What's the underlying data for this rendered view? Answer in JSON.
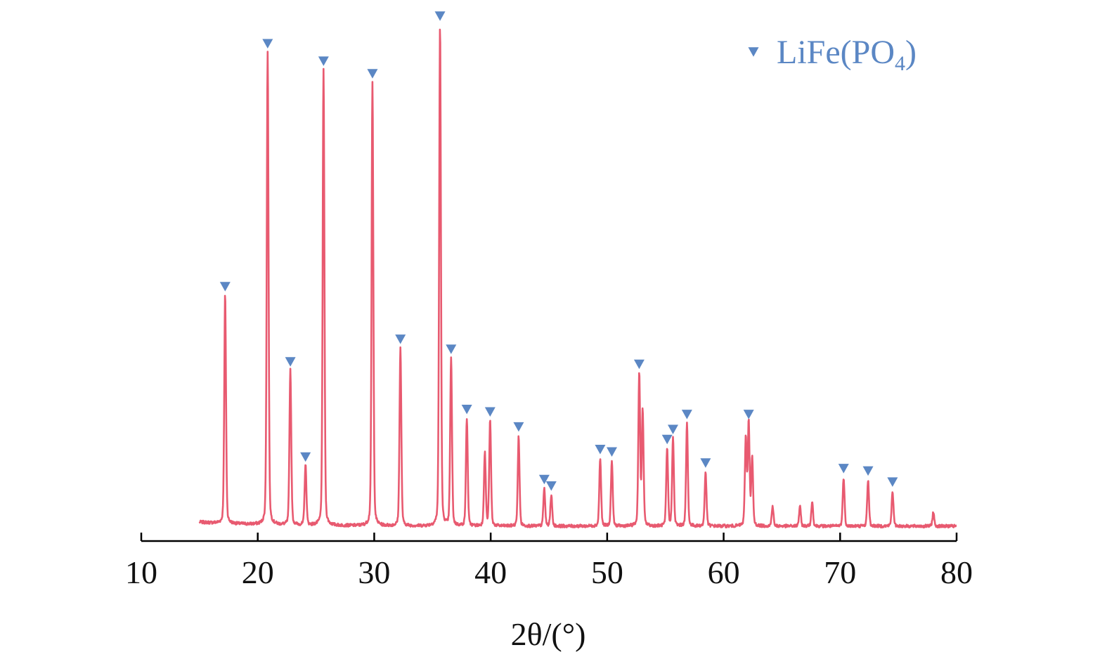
{
  "chart_data": {
    "type": "line",
    "title": "",
    "xlabel": "2θ/(°)",
    "ylabel": "",
    "xlim": [
      10,
      80
    ],
    "x_ticks": [
      10,
      20,
      30,
      40,
      50,
      60,
      70,
      80
    ],
    "grid": false,
    "y_axis_visible": false,
    "legend": {
      "position": "top-right",
      "entries": [
        {
          "marker": "down-triangle",
          "label": "LiFe(PO",
          "subscript": "4",
          "suffix": ")"
        }
      ]
    },
    "x_start": 15,
    "x_end": 80,
    "baseline": 10,
    "peaks": [
      {
        "x": 17.2,
        "y": 460
      },
      {
        "x": 20.85,
        "y": 945
      },
      {
        "x": 22.8,
        "y": 310
      },
      {
        "x": 24.1,
        "y": 120
      },
      {
        "x": 25.65,
        "y": 910
      },
      {
        "x": 29.85,
        "y": 885
      },
      {
        "x": 32.25,
        "y": 355
      },
      {
        "x": 35.65,
        "y": 1000
      },
      {
        "x": 36.6,
        "y": 335
      },
      {
        "x": 37.95,
        "y": 215
      },
      {
        "x": 39.5,
        "y": 145
      },
      {
        "x": 39.95,
        "y": 210
      },
      {
        "x": 42.4,
        "y": 180
      },
      {
        "x": 44.6,
        "y": 75
      },
      {
        "x": 45.2,
        "y": 62
      },
      {
        "x": 49.4,
        "y": 135
      },
      {
        "x": 50.4,
        "y": 130
      },
      {
        "x": 52.75,
        "y": 305
      },
      {
        "x": 53.05,
        "y": 230
      },
      {
        "x": 55.15,
        "y": 155
      },
      {
        "x": 55.65,
        "y": 175
      },
      {
        "x": 56.85,
        "y": 205
      },
      {
        "x": 58.45,
        "y": 108
      },
      {
        "x": 61.9,
        "y": 175
      },
      {
        "x": 62.15,
        "y": 205
      },
      {
        "x": 62.45,
        "y": 135
      },
      {
        "x": 64.2,
        "y": 40
      },
      {
        "x": 66.55,
        "y": 40
      },
      {
        "x": 67.6,
        "y": 50
      },
      {
        "x": 70.3,
        "y": 97
      },
      {
        "x": 72.4,
        "y": 92
      },
      {
        "x": 74.5,
        "y": 70
      },
      {
        "x": 78.0,
        "y": 28
      }
    ],
    "marked_peaks": [
      17.2,
      20.85,
      22.8,
      24.1,
      25.65,
      29.85,
      32.25,
      35.65,
      36.6,
      37.95,
      39.95,
      42.4,
      44.6,
      45.2,
      49.4,
      50.4,
      52.75,
      55.15,
      55.65,
      56.85,
      58.45,
      62.15,
      70.3,
      72.4,
      74.5
    ]
  },
  "colors": {
    "line": "#e85a70",
    "marker": "#5b87c4",
    "axis": "#000000",
    "legend_text": "#5b87c4"
  }
}
